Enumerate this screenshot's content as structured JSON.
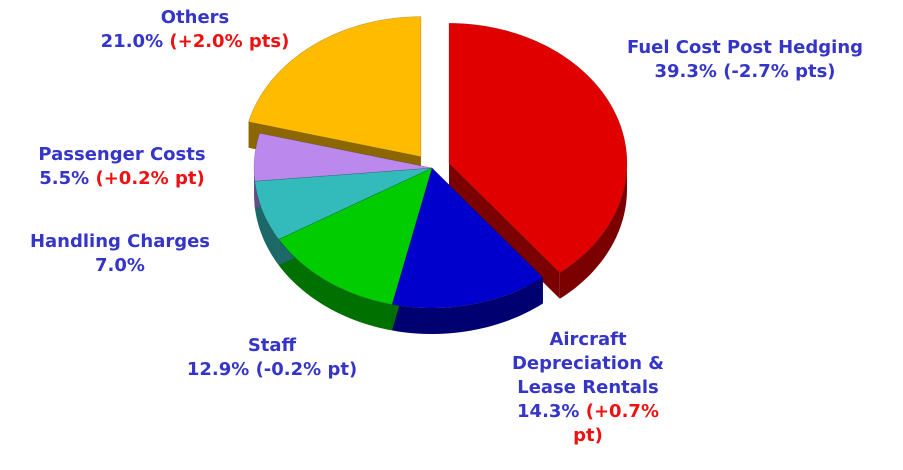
{
  "chart_data": {
    "type": "pie",
    "categories": [
      "Fuel Cost Post Hedging",
      "Aircraft Depreciation & Lease Rentals",
      "Staff",
      "Handling Charges",
      "Passenger Costs",
      "Others"
    ],
    "values": [
      39.3,
      14.3,
      12.9,
      7.0,
      5.5,
      21.0
    ],
    "value_labels": [
      "39.3%",
      "14.3%",
      "12.9%",
      "7.0%",
      "5.5%",
      "21.0%"
    ],
    "changes": [
      "(-2.7% pts)",
      "(+0.7% pt)",
      "(-0.2% pt)",
      null,
      "(+0.2% pt)",
      "(+2.0% pts)"
    ],
    "change_colors": [
      "#3535c8",
      "#ee1111",
      "#3535c8",
      null,
      "#ee1111",
      "#ee1111"
    ],
    "colors": [
      "#e00000",
      "#0000cc",
      "#00cc00",
      "#33bbbb",
      "#bb88ee",
      "#ffbb00"
    ],
    "exploded": [
      true,
      false,
      false,
      false,
      false,
      true
    ]
  }
}
